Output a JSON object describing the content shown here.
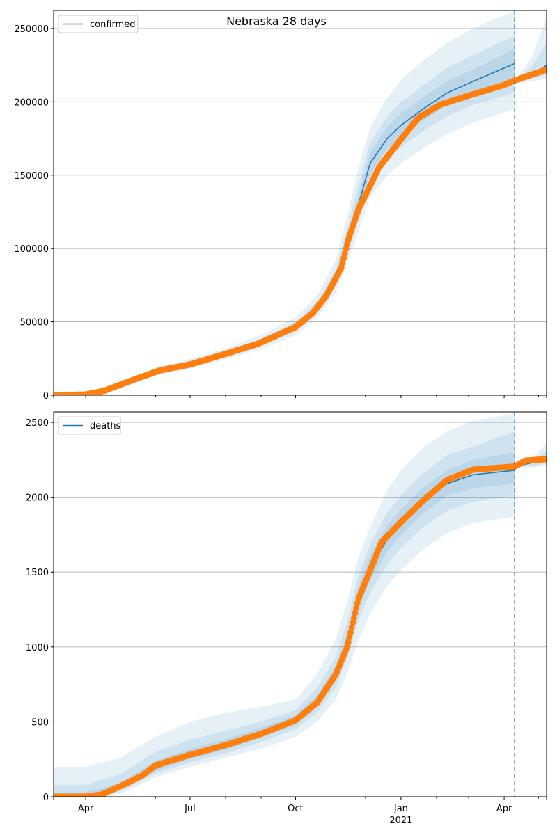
{
  "title": "Nebraska 28 days",
  "chart_data": [
    {
      "type": "line",
      "legend": "confirmed",
      "legend_placement": "top-left",
      "xlim": [
        "2020-03-04",
        "2021-05-08"
      ],
      "ylim": [
        0,
        262300
      ],
      "yticks": [
        0,
        50000,
        100000,
        150000,
        200000,
        250000
      ],
      "ytick_labels": [
        "0",
        "50000",
        "100000",
        "150000",
        "200000",
        "250000"
      ],
      "grid": "horizontal",
      "forecast_start": "2021-04-10",
      "dates": [
        "2020-03-04",
        "2020-04-01",
        "2020-05-01",
        "2020-06-01",
        "2020-07-01",
        "2020-08-01",
        "2020-09-01",
        "2020-10-01",
        "2020-10-20",
        "2020-11-05",
        "2020-11-15",
        "2020-11-25",
        "2020-12-05",
        "2020-12-20",
        "2021-01-01",
        "2021-01-20",
        "2021-02-10",
        "2021-03-05",
        "2021-04-10"
      ],
      "median": [
        0,
        500,
        6000,
        16000,
        21000,
        28000,
        36000,
        46500,
        60000,
        80000,
        103000,
        130000,
        158000,
        175000,
        184000,
        195000,
        206000,
        214000,
        226000
      ],
      "bands": [
        {
          "lo": [
            0,
            300,
            4500,
            13500,
            18000,
            24500,
            31500,
            41000,
            53000,
            70000,
            90000,
            112000,
            135000,
            150000,
            158000,
            168000,
            178000,
            186000,
            195000
          ],
          "hi": [
            800,
            800,
            7500,
            19000,
            24500,
            32000,
            41000,
            53000,
            68000,
            92000,
            122000,
            155000,
            182000,
            203000,
            215000,
            228000,
            240000,
            250000,
            262000
          ]
        },
        {
          "lo": [
            0,
            400,
            5000,
            14500,
            19300,
            26000,
            33500,
            43500,
            56000,
            74000,
            95000,
            119000,
            145000,
            161000,
            169000,
            180000,
            190000,
            198000,
            206000
          ],
          "hi": [
            600,
            600,
            7000,
            17600,
            22800,
            30000,
            38500,
            50000,
            64000,
            86000,
            113000,
            143000,
            172000,
            190000,
            200000,
            211000,
            223000,
            232000,
            245000
          ]
        },
        {
          "lo": [
            0,
            450,
            5500,
            15200,
            20100,
            27000,
            34700,
            45000,
            58000,
            77000,
            99000,
            124000,
            151000,
            168000,
            176000,
            187000,
            198000,
            206000,
            216000
          ],
          "hi": [
            550,
            550,
            6500,
            16800,
            21900,
            29000,
            37300,
            48000,
            62000,
            83000,
            108000,
            136000,
            165000,
            183000,
            192000,
            203000,
            214000,
            222000,
            236000
          ]
        }
      ],
      "forecast": {
        "dates": [
          "2021-04-10",
          "2021-04-25",
          "2021-05-08"
        ],
        "median": [
          214000,
          218000,
          225000
        ],
        "bands": [
          {
            "lo": [
              213000,
              214000,
              216000
            ],
            "hi": [
              215000,
              230000,
              258000
            ]
          },
          {
            "lo": [
              213500,
              215500,
              218500
            ],
            "hi": [
              214500,
              224000,
              240000
            ]
          }
        ]
      },
      "observed": {
        "dates": [
          "2020-03-04",
          "2020-04-01",
          "2020-04-17",
          "2020-05-09",
          "2020-06-05",
          "2020-07-01",
          "2020-07-29",
          "2020-08-29",
          "2020-10-01",
          "2020-10-16",
          "2020-10-28",
          "2020-11-10",
          "2020-11-16",
          "2020-11-25",
          "2020-12-04",
          "2020-12-13",
          "2021-01-01",
          "2021-01-16",
          "2021-02-04",
          "2021-02-28",
          "2021-04-01",
          "2021-04-10",
          "2021-05-08"
        ],
        "values": [
          0,
          500,
          3000,
          9500,
          17000,
          21000,
          27500,
          35000,
          46500,
          56000,
          68000,
          87000,
          106000,
          127000,
          141000,
          155500,
          174500,
          189000,
          198000,
          204000,
          211500,
          214500,
          222000
        ]
      }
    },
    {
      "type": "line",
      "legend": "deaths",
      "legend_placement": "top-left",
      "xlim": [
        "2020-03-04",
        "2021-05-08"
      ],
      "ylim": [
        0,
        2570
      ],
      "yticks": [
        0,
        500,
        1000,
        1500,
        2000,
        2500
      ],
      "ytick_labels": [
        "0",
        "500",
        "1000",
        "1500",
        "2000",
        "2500"
      ],
      "xticks": [
        "2020-04-01",
        "2020-07-01",
        "2020-10-01",
        "2021-01-01",
        "2021-04-01"
      ],
      "xtick_labels": [
        "Apr",
        "Jul",
        "Oct",
        "Jan",
        "Apr"
      ],
      "xtick_year_label": "2021",
      "grid": "horizontal",
      "forecast_start": "2021-04-10",
      "dates": [
        "2020-03-04",
        "2020-04-01",
        "2020-05-01",
        "2020-06-01",
        "2020-07-01",
        "2020-08-01",
        "2020-09-01",
        "2020-10-01",
        "2020-10-20",
        "2020-11-05",
        "2020-11-15",
        "2020-11-25",
        "2020-12-05",
        "2020-12-20",
        "2021-01-01",
        "2021-01-20",
        "2021-02-10",
        "2021-03-05",
        "2021-04-10"
      ],
      "median": [
        0,
        5,
        60,
        190,
        275,
        340,
        420,
        510,
        640,
        820,
        1020,
        1330,
        1520,
        1720,
        1830,
        1970,
        2090,
        2150,
        2180
      ],
      "bands": [
        {
          "lo": [
            0,
            0,
            20,
            130,
            200,
            260,
            320,
            400,
            500,
            650,
            820,
            1050,
            1220,
            1410,
            1510,
            1650,
            1760,
            1830,
            1870
          ],
          "hi": [
            200,
            200,
            260,
            400,
            500,
            560,
            600,
            650,
            820,
            1050,
            1300,
            1600,
            1800,
            2050,
            2180,
            2330,
            2440,
            2510,
            2560
          ]
        },
        {
          "lo": [
            0,
            0,
            35,
            155,
            230,
            290,
            365,
            450,
            565,
            730,
            920,
            1180,
            1360,
            1550,
            1660,
            1800,
            1910,
            1970,
            2010
          ],
          "hi": [
            80,
            80,
            150,
            300,
            380,
            440,
            500,
            580,
            730,
            930,
            1170,
            1480,
            1680,
            1900,
            2010,
            2160,
            2280,
            2340,
            2440
          ]
        },
        {
          "lo": [
            0,
            2,
            48,
            172,
            252,
            315,
            395,
            480,
            605,
            780,
            975,
            1260,
            1440,
            1640,
            1750,
            1890,
            2010,
            2060,
            2090
          ],
          "hi": [
            30,
            30,
            90,
            240,
            320,
            385,
            460,
            545,
            680,
            870,
            1080,
            1410,
            1610,
            1810,
            1920,
            2060,
            2180,
            2250,
            2300
          ]
        }
      ],
      "forecast": {
        "dates": [
          "2021-04-10",
          "2021-04-25",
          "2021-05-08"
        ],
        "median": [
          2205,
          2230,
          2260
        ],
        "bands": [
          {
            "lo": [
              2195,
              2200,
              2210
            ],
            "hi": [
              2215,
              2260,
              2360
            ]
          },
          {
            "lo": [
              2200,
              2210,
              2225
            ],
            "hi": [
              2210,
              2245,
              2310
            ]
          }
        ]
      },
      "observed": {
        "dates": [
          "2020-03-04",
          "2020-04-01",
          "2020-04-15",
          "2020-05-01",
          "2020-05-20",
          "2020-06-01",
          "2020-07-01",
          "2020-08-01",
          "2020-09-01",
          "2020-10-01",
          "2020-10-20",
          "2020-11-05",
          "2020-11-15",
          "2020-11-25",
          "2020-12-05",
          "2020-12-15",
          "2021-01-01",
          "2021-01-20",
          "2021-02-10",
          "2021-03-05",
          "2021-04-10",
          "2021-04-20",
          "2021-05-08"
        ],
        "values": [
          0,
          0,
          15,
          70,
          140,
          210,
          280,
          345,
          420,
          510,
          630,
          815,
          1000,
          1325,
          1510,
          1700,
          1835,
          1975,
          2115,
          2185,
          2205,
          2245,
          2255
        ]
      }
    }
  ],
  "colors": {
    "model": "#1f77b4",
    "observed": "#ff7f0e",
    "grid": "#b0b0b0"
  }
}
